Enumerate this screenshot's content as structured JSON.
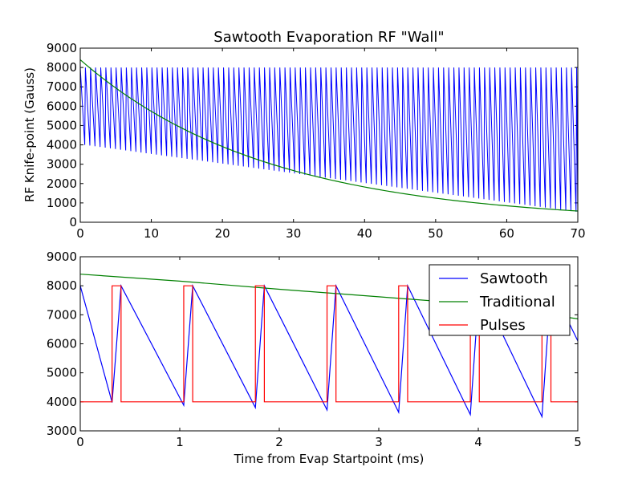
{
  "chart_data": [
    {
      "type": "line",
      "title": "Sawtooth Evaporation RF \"Wall\"",
      "xlabel": "",
      "ylabel": "RF Knife-point (Gauss)",
      "xlim": [
        0,
        70
      ],
      "ylim": [
        0,
        9000
      ],
      "xticks": [
        "0",
        "10",
        "20",
        "30",
        "40",
        "50",
        "60",
        "70"
      ],
      "yticks": [
        "0",
        "1000",
        "2000",
        "3000",
        "4000",
        "5000",
        "6000",
        "7000",
        "8000",
        "9000"
      ],
      "grid": false,
      "series": [
        {
          "color": "#0000ff",
          "kind": "sawtooth",
          "peak": 8000,
          "period_ms": 0.72,
          "trough_start": 4000,
          "trough_end": 500
        },
        {
          "color": "#008000",
          "kind": "exponential",
          "points": [
            [
              0,
              8400
            ],
            [
              5,
              6950
            ],
            [
              10,
              5750
            ],
            [
              15,
              4750
            ],
            [
              20,
              3900
            ],
            [
              25,
              3230
            ],
            [
              30,
              2680
            ],
            [
              35,
              2220
            ],
            [
              40,
              1840
            ],
            [
              45,
              1520
            ],
            [
              50,
              1260
            ],
            [
              55,
              1040
            ],
            [
              60,
              860
            ],
            [
              65,
              710
            ],
            [
              70,
              580
            ]
          ]
        }
      ]
    },
    {
      "type": "line",
      "title": "",
      "xlabel": "Time from Evap Startpoint (ms)",
      "ylabel": "",
      "xlim": [
        0,
        5
      ],
      "ylim": [
        3000,
        9000
      ],
      "xticks": [
        "0",
        "1",
        "2",
        "3",
        "4",
        "5"
      ],
      "yticks": [
        "3000",
        "4000",
        "5000",
        "6000",
        "7000",
        "8000",
        "9000"
      ],
      "grid": false,
      "legend": {
        "placement": "top-right"
      },
      "series": [
        {
          "name": "Sawtooth",
          "color": "#0000ff",
          "points": [
            [
              0,
              8000
            ],
            [
              0.32,
              3980
            ],
            [
              0.41,
              8000
            ],
            [
              1.04,
              3880
            ],
            [
              1.13,
              8000
            ],
            [
              1.76,
              3800
            ],
            [
              1.85,
              8000
            ],
            [
              2.48,
              3720
            ],
            [
              2.57,
              8000
            ],
            [
              3.2,
              3640
            ],
            [
              3.29,
              8000
            ],
            [
              3.92,
              3560
            ],
            [
              4.01,
              8000
            ],
            [
              4.64,
              3490
            ],
            [
              4.73,
              8000
            ],
            [
              5.0,
              6100
            ]
          ]
        },
        {
          "name": "Traditional",
          "color": "#008000",
          "points": [
            [
              0,
              8400
            ],
            [
              1,
              8160
            ],
            [
              2,
              7880
            ],
            [
              3,
              7620
            ],
            [
              4,
              7360
            ],
            [
              5,
              6860
            ]
          ]
        },
        {
          "name": "Pulses",
          "color": "#ff0000",
          "points": [
            [
              0,
              4000
            ],
            [
              0.32,
              4000
            ],
            [
              0.32,
              8000
            ],
            [
              0.41,
              8000
            ],
            [
              0.41,
              4000
            ],
            [
              1.04,
              4000
            ],
            [
              1.04,
              8000
            ],
            [
              1.13,
              8000
            ],
            [
              1.13,
              4000
            ],
            [
              1.76,
              4000
            ],
            [
              1.76,
              8000
            ],
            [
              1.85,
              8000
            ],
            [
              1.85,
              4000
            ],
            [
              2.48,
              4000
            ],
            [
              2.48,
              8000
            ],
            [
              2.57,
              8000
            ],
            [
              2.57,
              4000
            ],
            [
              3.2,
              4000
            ],
            [
              3.2,
              8000
            ],
            [
              3.29,
              8000
            ],
            [
              3.29,
              4000
            ],
            [
              3.92,
              4000
            ],
            [
              3.92,
              8000
            ],
            [
              4.01,
              8000
            ],
            [
              4.01,
              4000
            ],
            [
              4.64,
              4000
            ],
            [
              4.64,
              8000
            ],
            [
              4.73,
              8000
            ],
            [
              4.73,
              4000
            ],
            [
              5.0,
              4000
            ]
          ]
        }
      ]
    }
  ]
}
